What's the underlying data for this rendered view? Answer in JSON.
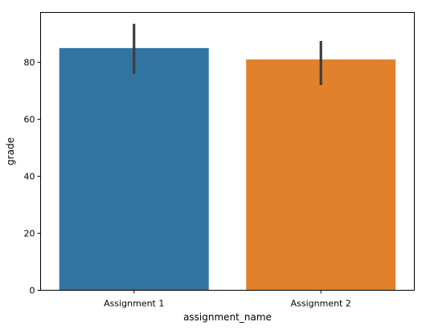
{
  "chart_data": {
    "type": "bar",
    "title": "",
    "xlabel": "assignment_name",
    "ylabel": "grade",
    "categories": [
      "Assignment 1",
      "Assignment 2"
    ],
    "values": [
      85,
      81
    ],
    "error_bars": [
      {
        "low": 76,
        "high": 93.5
      },
      {
        "low": 72,
        "high": 87.5
      }
    ],
    "bar_colors": [
      "#3274a1",
      "#e1812c"
    ],
    "error_bar_color": "#3d3d3d",
    "ylim": [
      0,
      97.5
    ],
    "yticks": [
      0,
      20,
      40,
      60,
      80
    ],
    "ytick_labels": [
      "0",
      "20",
      "40",
      "60",
      "80"
    ],
    "grid": false,
    "legend": "none"
  }
}
